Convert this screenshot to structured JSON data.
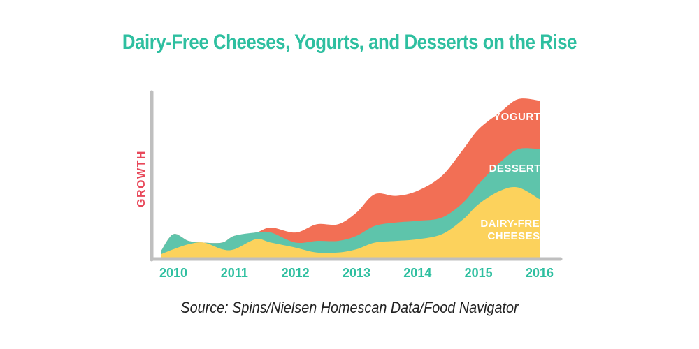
{
  "chart_data": {
    "type": "area",
    "title": "Dairy-Free Cheeses, Yogurts, and Desserts on the Rise",
    "ylabel": "GROWTH",
    "xlabel": "",
    "categories": [
      "2010",
      "2011",
      "2012",
      "2013",
      "2014",
      "2015",
      "2016"
    ],
    "x": [
      2009.8,
      2010.0,
      2010.25,
      2010.5,
      2010.8,
      2011.0,
      2011.35,
      2011.6,
      2012.0,
      2012.35,
      2012.7,
      2013.0,
      2013.3,
      2013.65,
      2014.0,
      2014.4,
      2014.75,
      2015.0,
      2015.35,
      2015.65,
      2016.0
    ],
    "stacked": true,
    "series": [
      {
        "name": "DAIRY-FREE CHEESES",
        "color": "#fcd25c",
        "values": [
          2,
          5,
          8,
          9,
          5,
          5,
          11,
          9,
          6,
          3,
          3,
          5,
          9,
          10,
          11,
          14,
          23,
          32,
          40,
          42,
          35
        ]
      },
      {
        "name": "DESSERTS",
        "color": "#5ec4ab",
        "values": [
          2,
          9,
          2,
          0,
          4,
          8,
          4,
          6,
          3,
          7,
          7,
          8,
          10,
          11,
          11,
          10,
          10,
          12,
          17,
          23,
          30
        ]
      },
      {
        "name": "YOGURTS",
        "color": "#f26f55",
        "values": [
          0,
          0,
          0,
          0,
          0,
          0,
          0,
          3,
          6,
          10,
          10,
          14,
          19,
          16,
          18,
          25,
          32,
          33,
          30,
          30,
          29
        ]
      }
    ],
    "ylim": [
      0,
      100
    ],
    "grid": false,
    "legend": "inline labels"
  },
  "labels": {
    "yogurts": "YOGURTS",
    "desserts": "DESSERTS",
    "cheeses_line1": "DAIRY-FREE",
    "cheeses_line2": "CHEESES"
  },
  "source": "Source: Spins/Nielsen Homescan Data/Food Navigator",
  "colors": {
    "title": "#2ebfa0",
    "axis": "#bfbfbf",
    "ylabel": "#e8485a"
  }
}
